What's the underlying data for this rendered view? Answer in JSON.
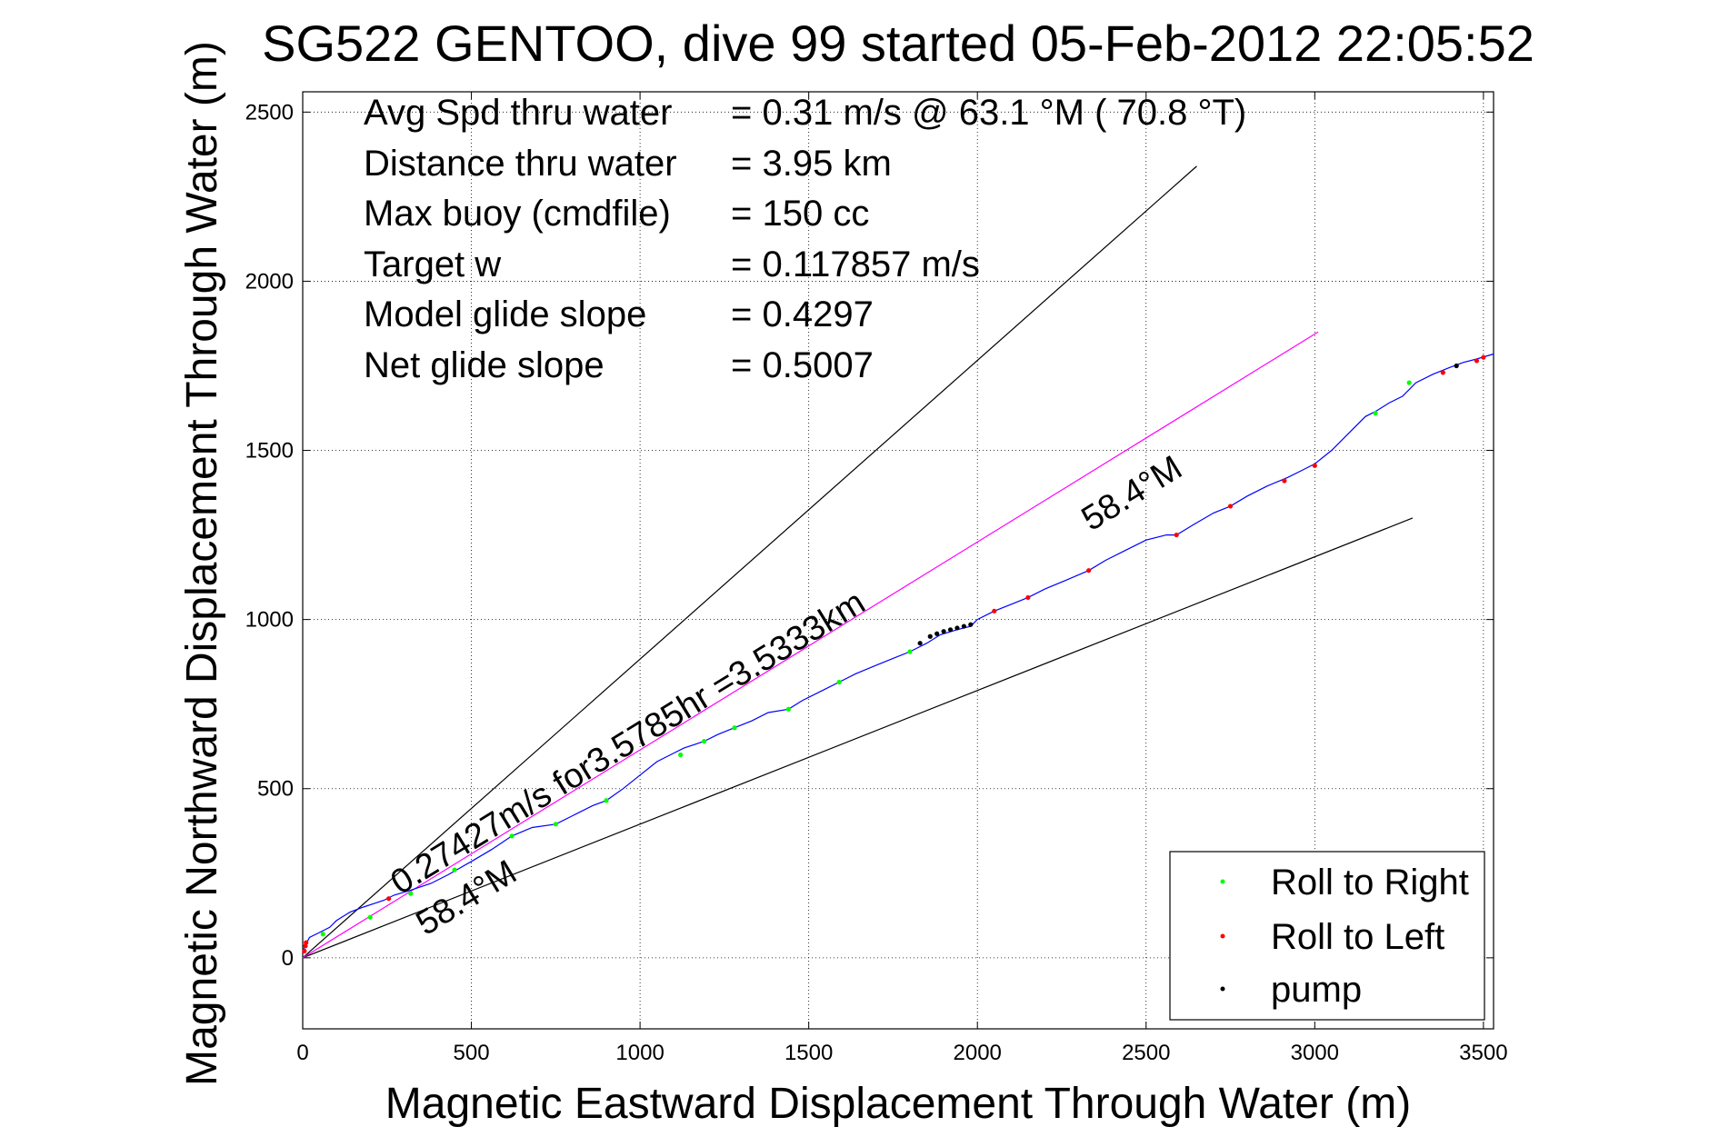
{
  "chart_data": {
    "type": "line",
    "title": "SG522 GENTOO, dive 99 started 05-Feb-2012 22:05:52",
    "xlabel": "Magnetic Eastward Displacement Through Water (m)",
    "ylabel": "Magnetic Northward Displacement Through Water (m)",
    "xlim": [
      0,
      3530
    ],
    "ylim": [
      -210,
      2560
    ],
    "xticks": [
      0,
      500,
      1000,
      1500,
      2000,
      2500,
      3000,
      3500
    ],
    "yticks": [
      0,
      500,
      1000,
      1500,
      2000,
      2500
    ],
    "grid": true,
    "legend_position": "bottom-right",
    "stats": [
      {
        "label": "Avg Spd thru water",
        "value": "=  0.31 m/s @  63.1 °M ( 70.8 °T)"
      },
      {
        "label": "Distance thru water",
        "value": "=  3.95 km"
      },
      {
        "label": "Max buoy (cmdfile)",
        "value": "= 150 cc"
      },
      {
        "label": "Target w",
        "value": "= 0.117857 m/s"
      },
      {
        "label": "Model glide slope",
        "value": "= 0.4297"
      },
      {
        "label": "Net glide slope",
        "value": "= 0.5007"
      }
    ],
    "annotations": {
      "current": "0.27427m/s for3.5785hr =3.5333km",
      "heading_lower": "58.4°M",
      "heading_upper": "58.4°M"
    },
    "lines": [
      {
        "role": "envelope-upper",
        "color": "#000000",
        "x": [
          0,
          2650
        ],
        "y": [
          0,
          2340
        ]
      },
      {
        "role": "envelope-lower",
        "color": "#000000",
        "x": [
          0,
          3290
        ],
        "y": [
          0,
          1300
        ]
      },
      {
        "role": "heading",
        "color": "#ff00ff",
        "x": [
          0,
          3010
        ],
        "y": [
          0,
          1850
        ]
      }
    ],
    "series": [
      {
        "role": "track",
        "color": "#0000ff",
        "x": [
          0,
          20,
          50,
          80,
          100,
          140,
          180,
          210,
          240,
          270,
          320,
          380,
          430,
          500,
          560,
          620,
          680,
          750,
          800,
          860,
          900,
          950,
          1000,
          1050,
          1090,
          1130,
          1190,
          1230,
          1280,
          1330,
          1380,
          1440,
          1480,
          1540,
          1590,
          1640,
          1700,
          1750,
          1800,
          1850,
          1890,
          1940,
          1980,
          2000,
          2050,
          2100,
          2150,
          2200,
          2260,
          2330,
          2380,
          2440,
          2500,
          2560,
          2590,
          2640,
          2700,
          2750,
          2800,
          2860,
          2920,
          2960,
          3000,
          3050,
          3100,
          3150,
          3180,
          3220,
          3260,
          3300,
          3350,
          3400,
          3440,
          3480,
          3530
        ],
        "y": [
          20,
          60,
          75,
          90,
          110,
          135,
          150,
          160,
          170,
          185,
          200,
          220,
          245,
          285,
          320,
          360,
          385,
          395,
          420,
          450,
          465,
          500,
          540,
          580,
          600,
          620,
          640,
          660,
          680,
          700,
          725,
          735,
          760,
          790,
          815,
          840,
          865,
          885,
          905,
          930,
          955,
          970,
          980,
          1000,
          1025,
          1045,
          1065,
          1090,
          1115,
          1145,
          1175,
          1205,
          1235,
          1250,
          1250,
          1280,
          1315,
          1335,
          1365,
          1395,
          1420,
          1440,
          1460,
          1500,
          1550,
          1600,
          1615,
          1640,
          1660,
          1700,
          1725,
          1745,
          1760,
          1770,
          1785
        ]
      },
      {
        "name": "Roll to Right",
        "color": "#00ff00",
        "x": [
          60,
          200,
          320,
          450,
          620,
          750,
          900,
          1120,
          1190,
          1280,
          1440,
          1590,
          1800,
          3180,
          3280
        ],
        "y": [
          70,
          120,
          190,
          260,
          360,
          395,
          465,
          600,
          640,
          680,
          735,
          815,
          905,
          1610,
          1700
        ]
      },
      {
        "name": "Roll to Left",
        "color": "#ff0000",
        "x": [
          5,
          8,
          10,
          255,
          2050,
          2150,
          2330,
          2590,
          2750,
          2910,
          3000,
          3380,
          3480,
          3500
        ],
        "y": [
          20,
          35,
          45,
          175,
          1025,
          1065,
          1145,
          1250,
          1335,
          1410,
          1455,
          1730,
          1765,
          1775
        ]
      },
      {
        "name": "pump",
        "color": "#000000",
        "x": [
          1830,
          1860,
          1880,
          1900,
          1920,
          1940,
          1960,
          1980,
          3420
        ],
        "y": [
          930,
          950,
          958,
          965,
          970,
          975,
          980,
          985,
          1750
        ]
      }
    ]
  }
}
